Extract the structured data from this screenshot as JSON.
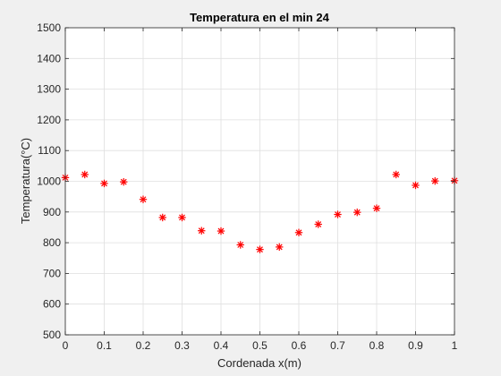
{
  "chart_data": {
    "type": "scatter",
    "title": "Temperatura en el min 24",
    "xlabel": "Cordenada x(m)",
    "ylabel": "Temperatura(°C)",
    "xlim": [
      0,
      1
    ],
    "ylim": [
      500,
      1500
    ],
    "xticks": [
      0,
      0.1,
      0.2,
      0.3,
      0.4,
      0.5,
      0.6,
      0.7,
      0.8,
      0.9,
      1
    ],
    "xtick_labels": [
      "0",
      "0.1",
      "0.2",
      "0.3",
      "0.4",
      "0.5",
      "0.6",
      "0.7",
      "0.8",
      "0.9",
      "1"
    ],
    "yticks": [
      500,
      600,
      700,
      800,
      900,
      1000,
      1100,
      1200,
      1300,
      1400,
      1500
    ],
    "ytick_labels": [
      "500",
      "600",
      "700",
      "800",
      "900",
      "1000",
      "1100",
      "1200",
      "1300",
      "1400",
      "1500"
    ],
    "grid": true,
    "marker": "asterisk",
    "marker_color": "#ff0000",
    "series": [
      {
        "x": [
          0,
          0.05,
          0.1,
          0.15,
          0.2,
          0.25,
          0.3,
          0.35,
          0.4,
          0.45,
          0.5,
          0.55,
          0.6,
          0.65,
          0.7,
          0.75,
          0.8,
          0.85,
          0.9,
          0.95,
          1
        ],
        "y": [
          1012,
          1022,
          993,
          998,
          941,
          882,
          882,
          839,
          838,
          793,
          778,
          786,
          833,
          860,
          892,
          899,
          912,
          1022,
          987,
          1001,
          1002
        ]
      }
    ]
  }
}
